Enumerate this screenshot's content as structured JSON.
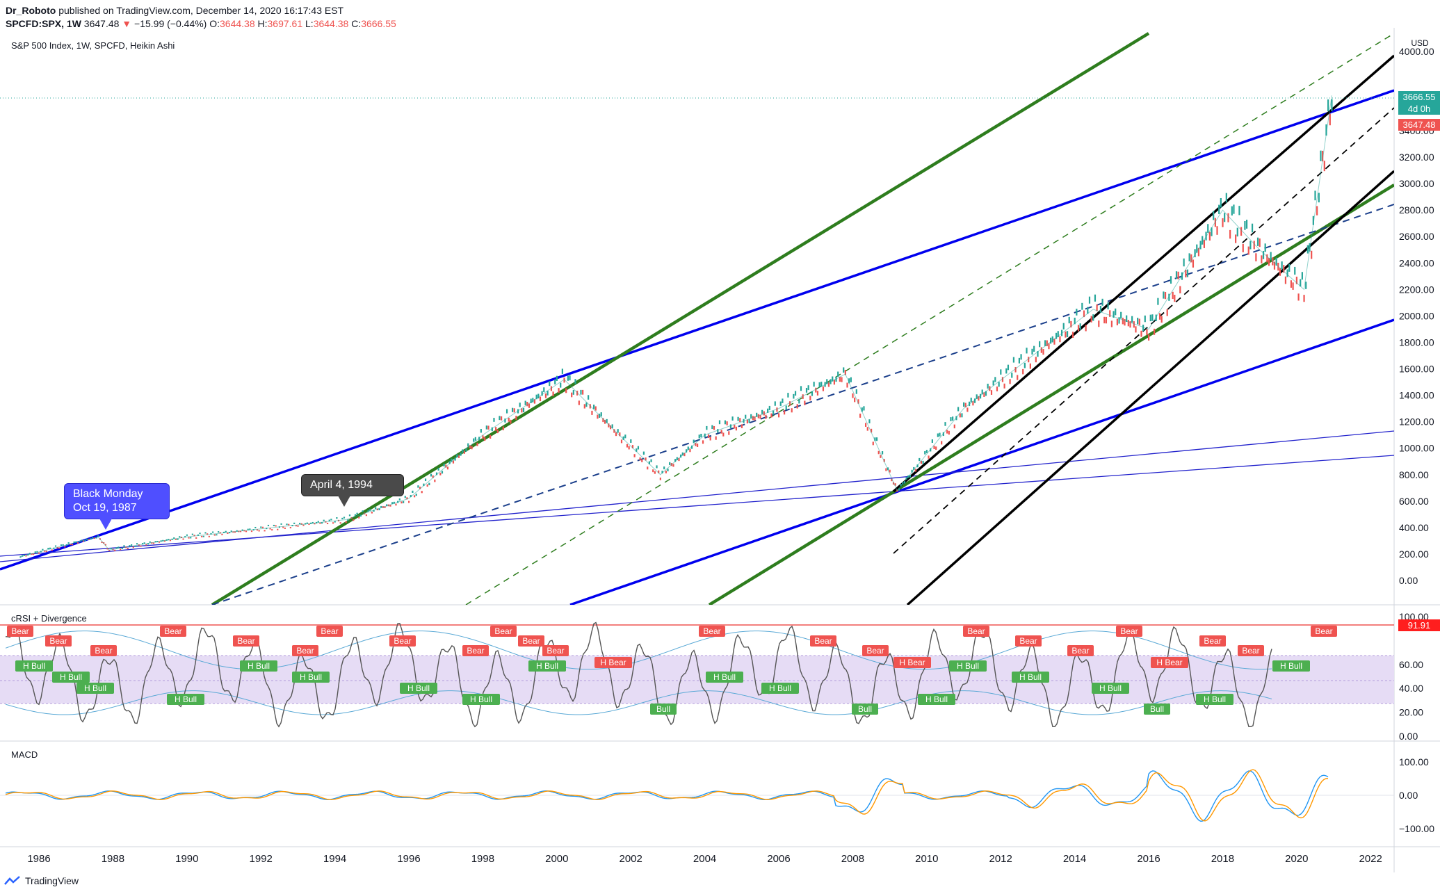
{
  "header": {
    "author": "Dr_Roboto",
    "published": "published on TradingView.com, December 14, 2020 16:17:43 EST",
    "symbol": "SPCFD:SPX, 1W",
    "last": "3647.48",
    "change": "−15.99 (−0.44%)",
    "o_label": "O:",
    "o": "3644.38",
    "h_label": "H:",
    "h": "3697.61",
    "l_label": "L:",
    "l": "3644.38",
    "c_label": "C:",
    "c": "3666.55"
  },
  "main_pane": {
    "title": "S&P 500 Index, 1W, SPCFD, Heikin Ashi",
    "currency": "USD",
    "y_ticks": [
      "4000.00",
      "3600.00",
      "3400.00",
      "3200.00",
      "3000.00",
      "2800.00",
      "2600.00",
      "2400.00",
      "2200.00",
      "2000.00",
      "1800.00",
      "1600.00",
      "1400.00",
      "1200.00",
      "1000.00",
      "800.00",
      "600.00",
      "400.00",
      "200.00",
      "0.00"
    ],
    "price_tag": "3666.55",
    "countdown_tag": "4d 0h",
    "last_tag": "3647.48",
    "callout_black_monday": [
      "Black Monday",
      "Oct 19, 1987"
    ],
    "callout_april": "April 4, 1994"
  },
  "rsi_pane": {
    "title": "cRSI + Divergence",
    "y_ticks": [
      "100.00",
      "60.00",
      "40.00",
      "20.00",
      "0.00"
    ],
    "value_tag": "91.91",
    "bear_label": "Bear",
    "hbear_label": "H Bear",
    "bull_label": "Bull",
    "hbull_label": "H Bull"
  },
  "macd_pane": {
    "title": "MACD",
    "y_ticks": [
      "100.00",
      "0.00",
      "−100.00"
    ]
  },
  "x_axis": {
    "ticks": [
      "1986",
      "1988",
      "1990",
      "1992",
      "1994",
      "1996",
      "1998",
      "2000",
      "2002",
      "2004",
      "2006",
      "2008",
      "2010",
      "2012",
      "2014",
      "2016",
      "2018",
      "2020",
      "2022"
    ]
  },
  "footer": {
    "brand": "TradingView"
  },
  "colors": {
    "blue_line": "#0000ee",
    "green_line": "#2e7d1e",
    "black_line": "#000000",
    "up": "#26a69a",
    "down": "#ef5350",
    "rsi_band": "#e6dcf5"
  },
  "chart_data": {
    "type": "line",
    "title": "S&P 500 Index, 1W, SPCFD, Heikin Ashi",
    "x": [
      1985.5,
      1987.6,
      1987.9,
      1990,
      1994.3,
      1996,
      1998,
      2000.2,
      2001.5,
      2002.8,
      2004,
      2006,
      2007.8,
      2009.2,
      2011,
      2014.5,
      2016,
      2018,
      2019,
      2020.2,
      2020.95
    ],
    "series": [
      {
        "name": "",
        "values": [
          180,
          330,
          230,
          330,
          460,
          620,
          1100,
          1520,
          1150,
          800,
          1100,
          1300,
          1560,
          680,
          1300,
          2050,
          1900,
          2800,
          2500,
          2200,
          3666
        ]
      }
    ],
    "ylim": [
      0,
      4000
    ],
    "xlim": [
      1985.3,
      2022.8
    ]
  }
}
